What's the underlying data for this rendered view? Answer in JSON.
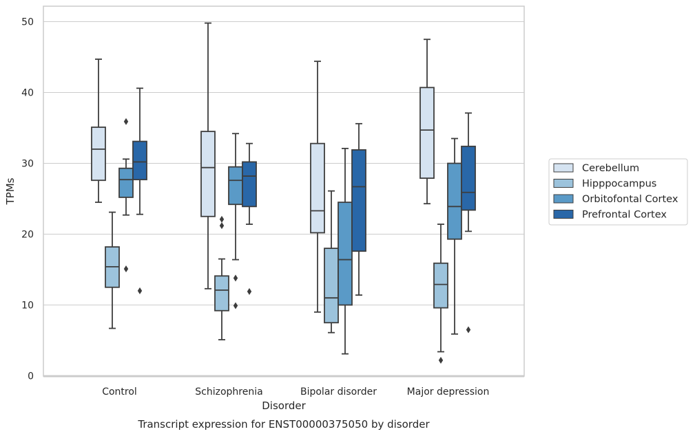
{
  "chart_data": {
    "type": "box",
    "xlabel": "Disorder",
    "ylabel": "TPMs",
    "caption": "Transcript expression for ENST00000375050 by disorder",
    "ylim": [
      0,
      52
    ],
    "yticks": [
      0,
      10,
      20,
      30,
      40,
      50
    ],
    "grid": true,
    "legend_position": "right",
    "categories": [
      "Control",
      "Schizophrenia",
      "Bipolar disorder",
      "Major depression"
    ],
    "series": [
      {
        "name": "Cerebellum",
        "color": "#d5e3f1",
        "boxes": [
          {
            "whisker_low": 24.5,
            "q1": 27.6,
            "median": 32.0,
            "q3": 35.1,
            "whisker_high": 44.7,
            "outliers": []
          },
          {
            "whisker_low": 12.3,
            "q1": 22.5,
            "median": 29.4,
            "q3": 34.5,
            "whisker_high": 49.8,
            "outliers": []
          },
          {
            "whisker_low": 9.0,
            "q1": 20.2,
            "median": 23.3,
            "q3": 32.8,
            "whisker_high": 44.4,
            "outliers": []
          },
          {
            "whisker_low": 24.3,
            "q1": 27.9,
            "median": 34.7,
            "q3": 40.7,
            "whisker_high": 47.5,
            "outliers": []
          }
        ]
      },
      {
        "name": "Hipppocampus",
        "color": "#9cc3dc",
        "boxes": [
          {
            "whisker_low": 6.7,
            "q1": 12.5,
            "median": 15.4,
            "q3": 18.2,
            "whisker_high": 23.1,
            "outliers": []
          },
          {
            "whisker_low": 5.1,
            "q1": 9.2,
            "median": 12.1,
            "q3": 14.1,
            "whisker_high": 16.5,
            "outliers": [
              22.1,
              21.2
            ]
          },
          {
            "whisker_low": 6.1,
            "q1": 7.5,
            "median": 11.0,
            "q3": 18.0,
            "whisker_high": 26.1,
            "outliers": []
          },
          {
            "whisker_low": 3.4,
            "q1": 9.6,
            "median": 12.9,
            "q3": 15.9,
            "whisker_high": 21.4,
            "outliers": [
              2.2
            ]
          }
        ]
      },
      {
        "name": "Orbitofontal Cortex",
        "color": "#5a9ac7",
        "boxes": [
          {
            "whisker_low": 22.7,
            "q1": 25.2,
            "median": 27.7,
            "q3": 29.3,
            "whisker_high": 30.6,
            "outliers": [
              35.9,
              15.1
            ]
          },
          {
            "whisker_low": 16.4,
            "q1": 24.2,
            "median": 27.6,
            "q3": 29.5,
            "whisker_high": 34.2,
            "outliers": [
              13.8,
              9.9
            ]
          },
          {
            "whisker_low": 3.1,
            "q1": 10.0,
            "median": 16.4,
            "q3": 24.5,
            "whisker_high": 32.1,
            "outliers": []
          },
          {
            "whisker_low": 5.9,
            "q1": 19.3,
            "median": 23.9,
            "q3": 30.0,
            "whisker_high": 33.5,
            "outliers": []
          }
        ]
      },
      {
        "name": "Prefrontal Cortex",
        "color": "#2967a8",
        "boxes": [
          {
            "whisker_low": 22.8,
            "q1": 27.7,
            "median": 30.2,
            "q3": 33.1,
            "whisker_high": 40.6,
            "outliers": [
              12.0
            ]
          },
          {
            "whisker_low": 21.4,
            "q1": 23.9,
            "median": 28.2,
            "q3": 30.2,
            "whisker_high": 32.8,
            "outliers": [
              11.9
            ]
          },
          {
            "whisker_low": 11.4,
            "q1": 17.6,
            "median": 26.7,
            "q3": 31.9,
            "whisker_high": 35.6,
            "outliers": []
          },
          {
            "whisker_low": 20.4,
            "q1": 23.4,
            "median": 25.9,
            "q3": 32.4,
            "whisker_high": 37.1,
            "outliers": [
              6.5
            ]
          }
        ]
      }
    ]
  }
}
